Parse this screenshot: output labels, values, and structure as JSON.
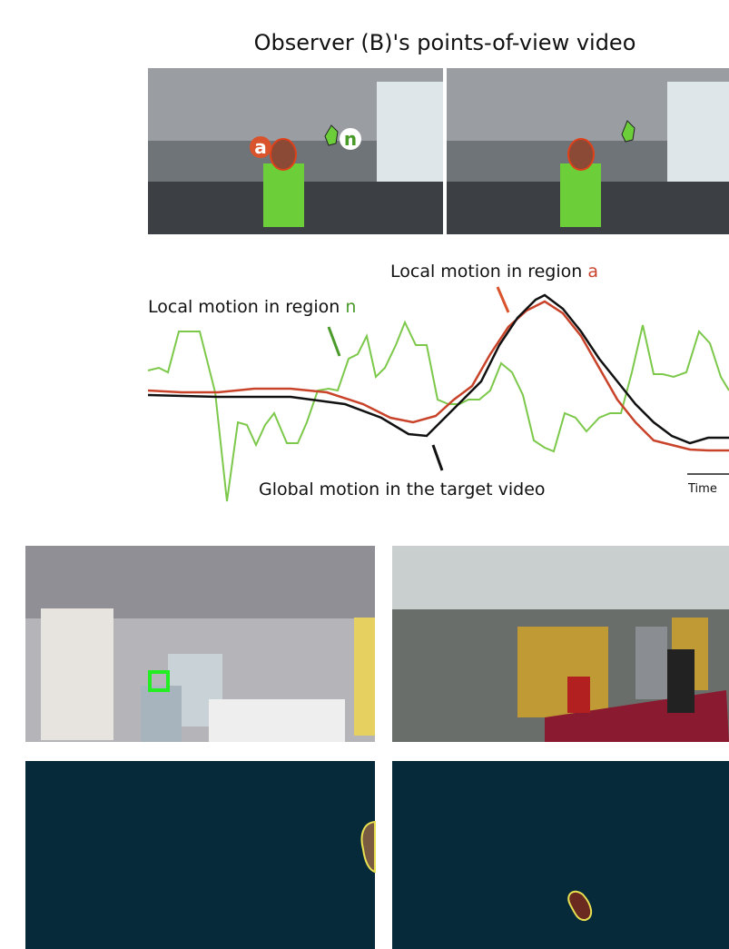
{
  "header": {
    "title": "Observer (B)'s points-of-view video"
  },
  "frames": {
    "labels": [
      "a",
      "n"
    ]
  },
  "graph": {
    "label_a": {
      "prefix": "Local motion in region",
      "region": "a"
    },
    "label_n": {
      "prefix": "Local motion in region",
      "region": "n"
    },
    "label_global": "Global motion in the target video",
    "time_label": "Time"
  }
}
